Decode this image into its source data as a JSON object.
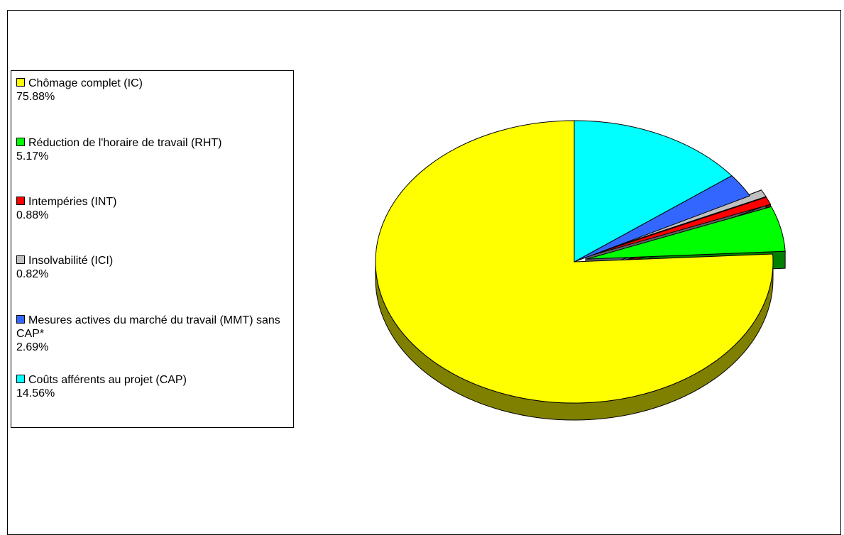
{
  "chart_data": {
    "type": "pie",
    "title": "",
    "slices": [
      {
        "label": "Chômage complet (IC)",
        "value": 75.88,
        "value_label": "75.88%",
        "color": "#FFFF00",
        "side_color": "#808000",
        "exploded": false
      },
      {
        "label": "Réduction de l'horaire de travail (RHT)",
        "value": 5.17,
        "value_label": "5.17%",
        "color": "#00FF00",
        "side_color": "#008000",
        "exploded": true
      },
      {
        "label": "Intempéries (INT)",
        "value": 0.88,
        "value_label": "0.88%",
        "color": "#FF0000",
        "side_color": "#800000",
        "exploded": true
      },
      {
        "label": "Insolvabilité (ICI)",
        "value": 0.82,
        "value_label": "0.82%",
        "color": "#C0C0C0",
        "side_color": "#606060",
        "exploded": true
      },
      {
        "label": "Mesures actives du marché du travail (MMT) sans CAP*",
        "value": 2.69,
        "value_label": "2.69%",
        "color": "#3366FF",
        "side_color": "#1A3380",
        "exploded": false
      },
      {
        "label": "Coûts afférents au projet (CAP)",
        "value": 14.56,
        "value_label": "14.56%",
        "color": "#00FFFF",
        "side_color": "#008080",
        "exploded": false
      }
    ],
    "legend_position": "left"
  }
}
